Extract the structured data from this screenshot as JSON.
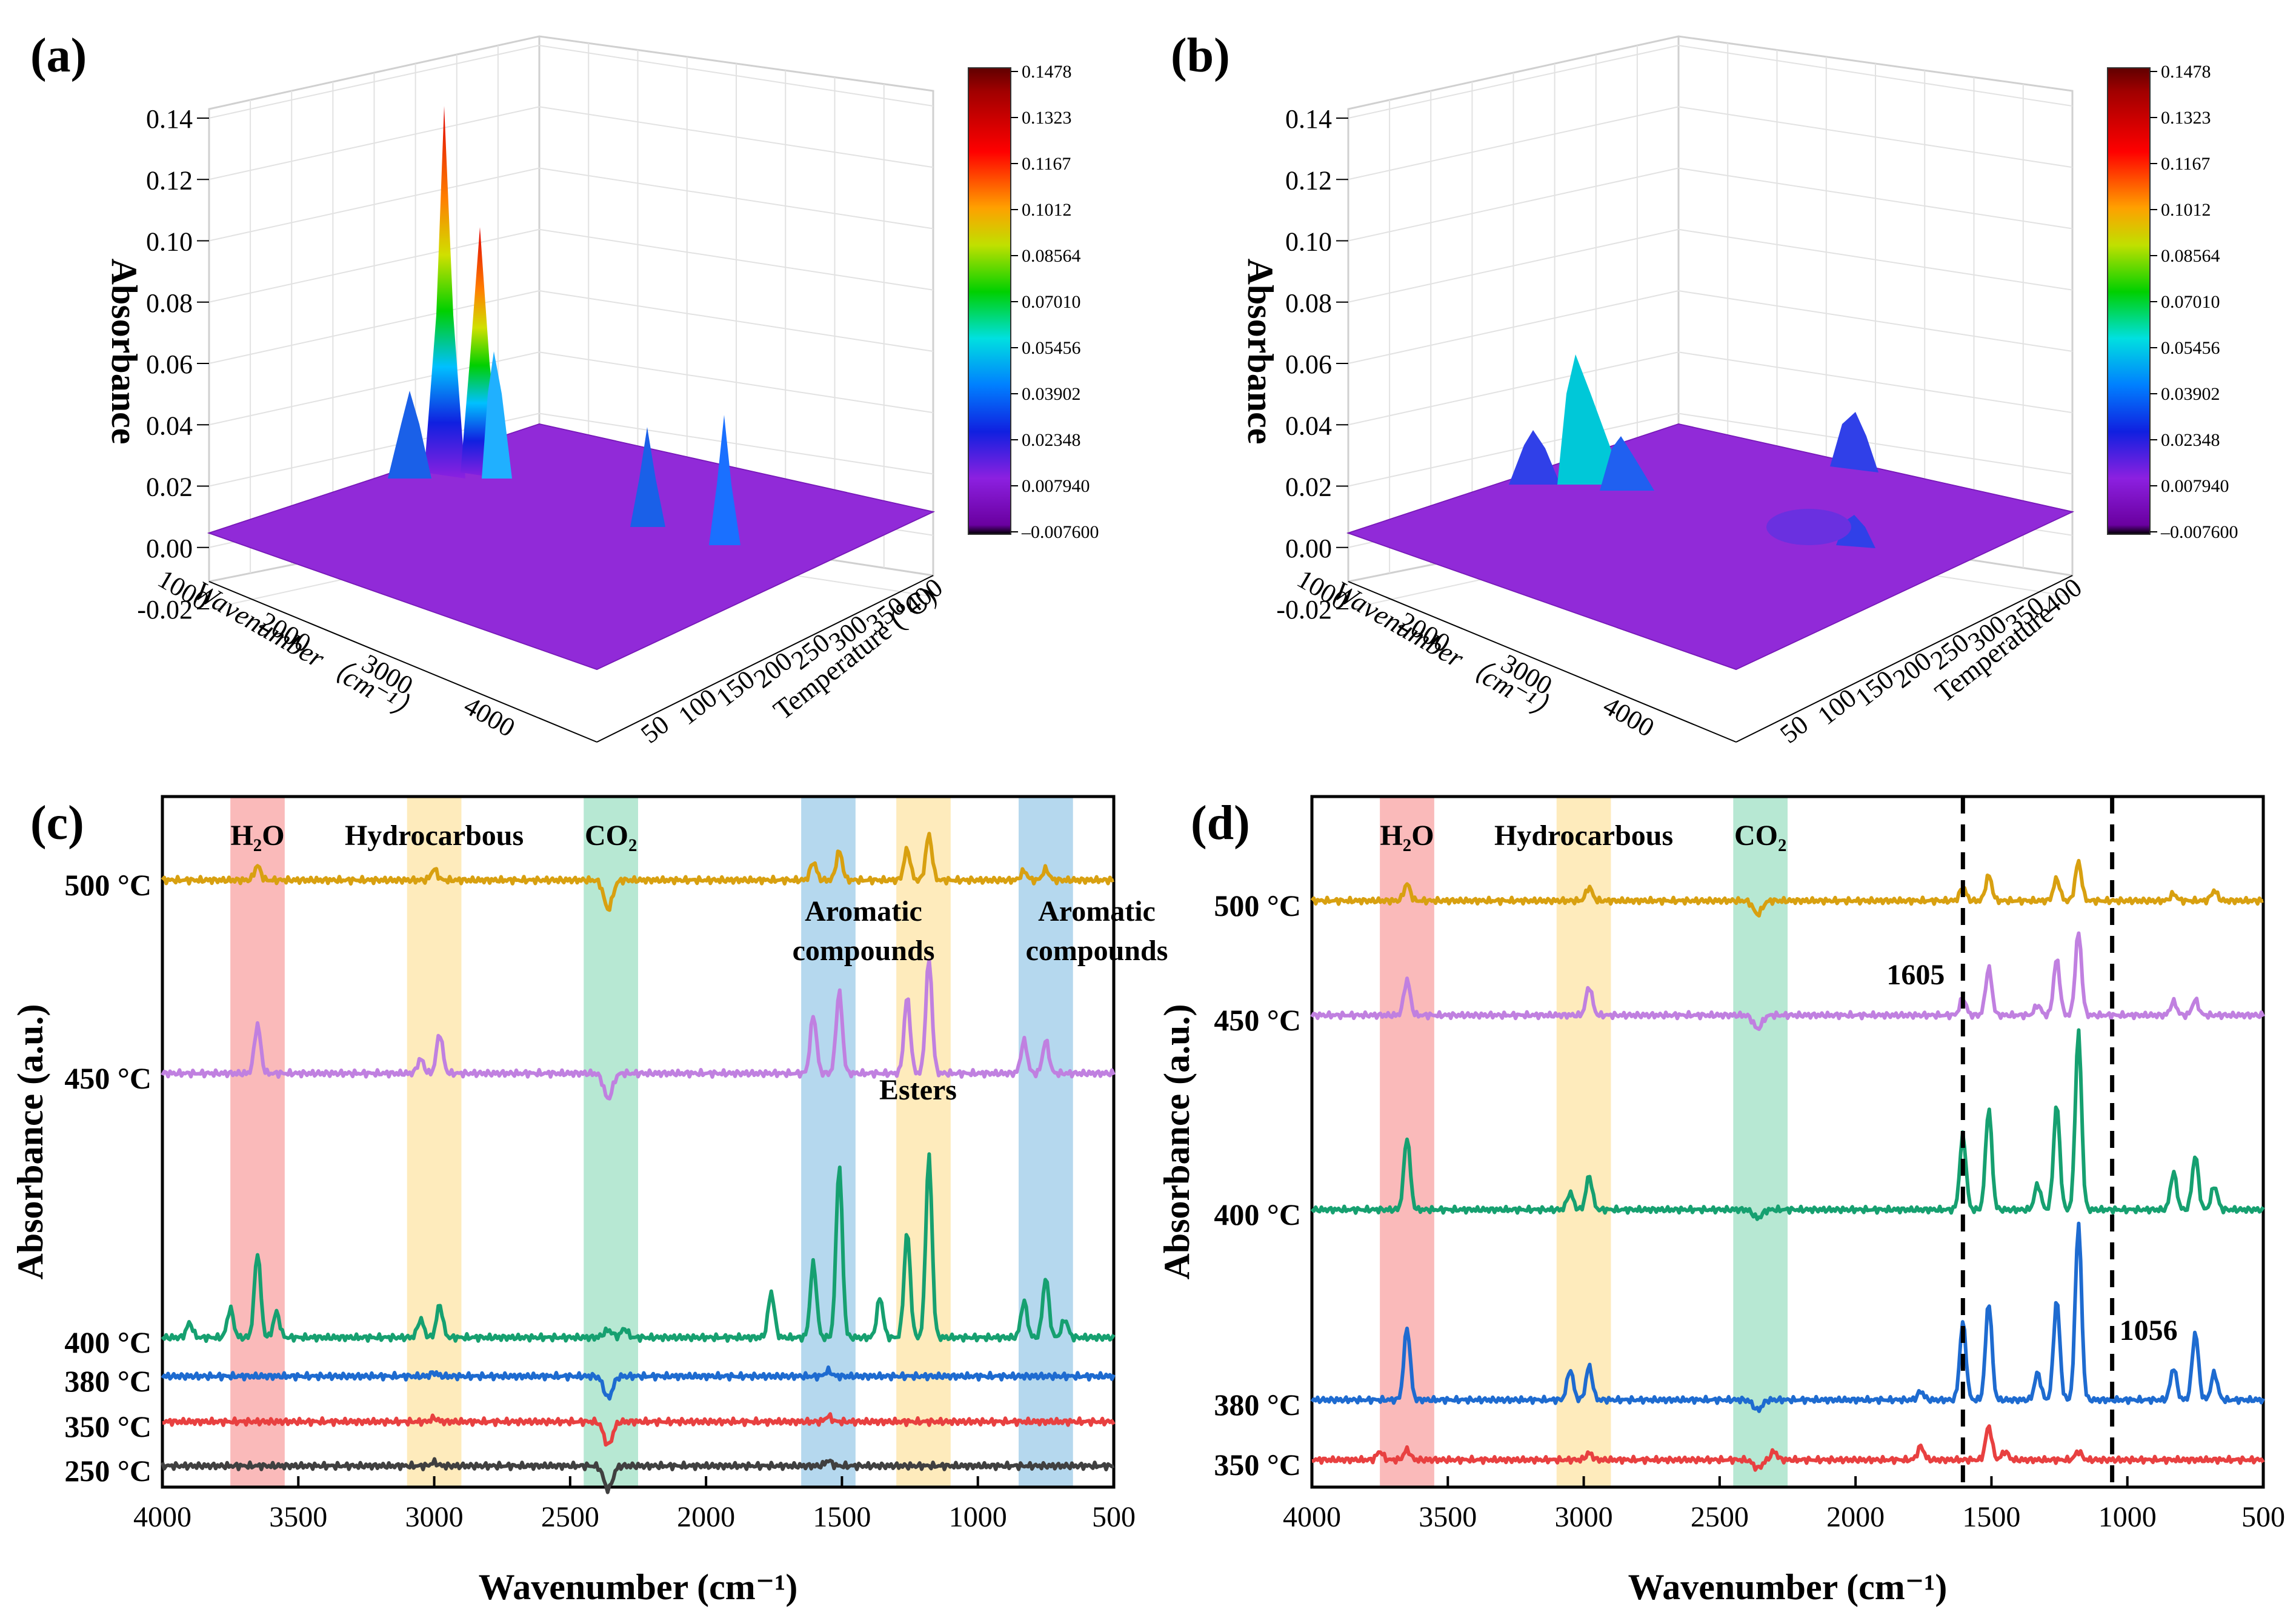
{
  "figure": {
    "panels": {
      "a": {
        "label": "(a)"
      },
      "b": {
        "label": "(b)"
      },
      "c": {
        "label": "(c)"
      },
      "d": {
        "label": "(d)"
      }
    }
  },
  "chart_data": [
    {
      "id": "a",
      "type": "surface3d",
      "title": "",
      "xlabel": "Wavenumber（cm⁻¹）",
      "ylabel": "Temperature (℃)",
      "zlabel": "Absorbance",
      "z_ticks": [
        "-0.02",
        "0.00",
        "0.02",
        "0.04",
        "0.06",
        "0.08",
        "0.10",
        "0.12",
        "0.14"
      ],
      "wavenumber_ticks": [
        "1000",
        "2000",
        "3000",
        "4000"
      ],
      "temperature_ticks": [
        "50",
        "100",
        "150",
        "200",
        "250",
        "300",
        "350",
        "400"
      ],
      "colorbar_ticks": [
        "0.1478",
        "0.1323",
        "0.1167",
        "0.1012",
        "0.08564",
        "0.07010",
        "0.05456",
        "0.03902",
        "0.02348",
        "0.007940",
        "-0.007600"
      ],
      "peaks": [
        {
          "wavenumber": 2970,
          "temperature": 400,
          "absorbance": 0.148
        },
        {
          "wavenumber": 2930,
          "temperature": 400,
          "absorbance": 0.103
        },
        {
          "wavenumber": 3050,
          "temperature": 400,
          "absorbance": 0.05
        },
        {
          "wavenumber": 3650,
          "temperature": 400,
          "absorbance": 0.045
        },
        {
          "wavenumber": 1510,
          "temperature": 400,
          "absorbance": 0.035
        },
        {
          "wavenumber": 1180,
          "temperature": 400,
          "absorbance": 0.045
        }
      ]
    },
    {
      "id": "b",
      "type": "surface3d",
      "title": "",
      "xlabel": "Wavenumber（cm⁻¹）",
      "ylabel": "Temperature",
      "zlabel": "Absorbance",
      "z_ticks": [
        "-0.02",
        "0.00",
        "0.02",
        "0.04",
        "0.06",
        "0.08",
        "0.10",
        "0.12",
        "0.14"
      ],
      "wavenumber_ticks": [
        "1000",
        "2000",
        "3000",
        "4000"
      ],
      "temperature_ticks": [
        "50",
        "100",
        "150",
        "200",
        "250",
        "300",
        "350",
        "400"
      ],
      "colorbar_ticks": [
        "0.1478",
        "0.1323",
        "0.1167",
        "0.1012",
        "0.08564",
        "0.07010",
        "0.05456",
        "0.03902",
        "0.02348",
        "0.007940",
        "-0.007600"
      ],
      "peaks": [
        {
          "wavenumber": 2970,
          "temperature": 400,
          "absorbance": 0.058
        },
        {
          "wavenumber": 3650,
          "temperature": 400,
          "absorbance": 0.022
        },
        {
          "wavenumber": 2900,
          "temperature": 400,
          "absorbance": 0.025
        },
        {
          "wavenumber": 1510,
          "temperature": 350,
          "absorbance": 0.018
        },
        {
          "wavenumber": 1180,
          "temperature": 350,
          "absorbance": 0.015
        }
      ]
    },
    {
      "id": "c",
      "type": "line",
      "title": "",
      "xlabel": "Wavenumber (cm⁻¹)",
      "ylabel": "Absorbance (a.u.)",
      "xlim": [
        4000,
        500
      ],
      "x_ticks": [
        "4000",
        "3500",
        "3000",
        "2500",
        "2000",
        "1500",
        "1000",
        "500"
      ],
      "bands": [
        {
          "label": "H₂O",
          "range": [
            3750,
            3550
          ],
          "color": "#f8a3a3"
        },
        {
          "label": "Hydrocarbous",
          "range": [
            3100,
            2900
          ],
          "color": "#fde4a6"
        },
        {
          "label": "CO₂",
          "range": [
            2450,
            2250
          ],
          "color": "#9fe0c4"
        },
        {
          "label": "",
          "range": [
            1650,
            1450
          ],
          "color": "#9ccbe8"
        },
        {
          "label": "",
          "range": [
            1300,
            1100
          ],
          "color": "#fde4a6"
        },
        {
          "label": "",
          "range": [
            850,
            650
          ],
          "color": "#9ccbe8"
        }
      ],
      "annotations": [
        {
          "text": "Aromatic",
          "x": 1550
        },
        {
          "text": "compounds",
          "x": 1550
        },
        {
          "text": "Aromatic",
          "x": 730
        },
        {
          "text": "compounds",
          "x": 730
        },
        {
          "text": "Esters",
          "x": 1220
        }
      ],
      "series": [
        {
          "name": "500 °C",
          "color": "#d8a010",
          "peaks": [
            [
              3650,
              0.8
            ],
            [
              3000,
              0.6
            ],
            [
              2360,
              -1.6
            ],
            [
              1605,
              1.0
            ],
            [
              1510,
              1.6
            ],
            [
              1260,
              1.7
            ],
            [
              1180,
              2.5
            ],
            [
              830,
              0.5
            ],
            [
              750,
              0.6
            ]
          ]
        },
        {
          "name": "450 °C",
          "color": "#c080e0",
          "peaks": [
            [
              3650,
              2.7
            ],
            [
              3050,
              0.8
            ],
            [
              2980,
              2.2
            ],
            [
              2360,
              -1.4
            ],
            [
              1605,
              3.2
            ],
            [
              1510,
              4.5
            ],
            [
              1260,
              4.2
            ],
            [
              1180,
              6.3
            ],
            [
              830,
              1.8
            ],
            [
              750,
              1.8
            ]
          ]
        },
        {
          "name": "400 °C",
          "color": "#16a070",
          "peaks": [
            [
              3900,
              0.8
            ],
            [
              3750,
              1.6
            ],
            [
              3650,
              4.7
            ],
            [
              3580,
              1.4
            ],
            [
              3050,
              1.0
            ],
            [
              2980,
              1.8
            ],
            [
              2360,
              0.4
            ],
            [
              2300,
              0.5
            ],
            [
              1760,
              2.5
            ],
            [
              1605,
              4.1
            ],
            [
              1510,
              9.5
            ],
            [
              1360,
              2.2
            ],
            [
              1260,
              5.8
            ],
            [
              1180,
              10.0
            ],
            [
              830,
              2.0
            ],
            [
              750,
              3.3
            ],
            [
              680,
              1.0
            ]
          ]
        },
        {
          "name": "380 °C",
          "color": "#1e6bd0",
          "peaks": [
            [
              3000,
              0.2
            ],
            [
              2360,
              -1.2
            ],
            [
              1550,
              0.3
            ]
          ]
        },
        {
          "name": "350 °C",
          "color": "#e84040",
          "peaks": [
            [
              3000,
              0.2
            ],
            [
              2360,
              -1.3
            ],
            [
              1550,
              0.3
            ]
          ]
        },
        {
          "name": "250 °C",
          "color": "#404040",
          "peaks": [
            [
              3000,
              0.2
            ],
            [
              2360,
              -1.3
            ],
            [
              1550,
              0.3
            ]
          ]
        }
      ]
    },
    {
      "id": "d",
      "type": "line",
      "title": "",
      "xlabel": "Wavenumber (cm⁻¹)",
      "ylabel": "Absorbance (a.u.)",
      "xlim": [
        4000,
        500
      ],
      "x_ticks": [
        "4000",
        "3500",
        "3000",
        "2500",
        "2000",
        "1500",
        "1000",
        "500"
      ],
      "bands": [
        {
          "label": "H₂O",
          "range": [
            3750,
            3550
          ],
          "color": "#f8a3a3"
        },
        {
          "label": "Hydrocarbous",
          "range": [
            3100,
            2900
          ],
          "color": "#fde4a6"
        },
        {
          "label": "CO₂",
          "range": [
            2450,
            2250
          ],
          "color": "#9fe0c4"
        }
      ],
      "reference_lines": [
        {
          "label": "1605",
          "x": 1605
        },
        {
          "label": "1056",
          "x": 1056
        }
      ],
      "series": [
        {
          "name": "500 °C",
          "color": "#d8a010",
          "peaks": [
            [
              3650,
              1.0
            ],
            [
              2980,
              0.8
            ],
            [
              2360,
              -0.8
            ],
            [
              1605,
              0.8
            ],
            [
              1510,
              1.5
            ],
            [
              1260,
              1.3
            ],
            [
              1180,
              2.3
            ],
            [
              830,
              0.4
            ],
            [
              680,
              0.6
            ]
          ]
        },
        {
          "name": "450 °C",
          "color": "#c080e0",
          "peaks": [
            [
              3650,
              2.1
            ],
            [
              2980,
              1.7
            ],
            [
              2360,
              -0.8
            ],
            [
              1605,
              1.0
            ],
            [
              1510,
              2.8
            ],
            [
              1330,
              0.6
            ],
            [
              1260,
              3.3
            ],
            [
              1180,
              4.9
            ],
            [
              830,
              0.8
            ],
            [
              750,
              0.9
            ]
          ]
        },
        {
          "name": "400 °C",
          "color": "#16a070",
          "peaks": [
            [
              3650,
              4.3
            ],
            [
              3050,
              1.0
            ],
            [
              2980,
              2.0
            ],
            [
              2360,
              -0.5
            ],
            [
              1605,
              4.4
            ],
            [
              1510,
              6.0
            ],
            [
              1330,
              1.5
            ],
            [
              1260,
              6.2
            ],
            [
              1180,
              10.5
            ],
            [
              830,
              2.2
            ],
            [
              750,
              3.2
            ],
            [
              680,
              1.4
            ]
          ]
        },
        {
          "name": "380 °C",
          "color": "#1e6bd0",
          "peaks": [
            [
              3650,
              4.3
            ],
            [
              3050,
              1.8
            ],
            [
              2980,
              2.0
            ],
            [
              2360,
              -0.6
            ],
            [
              1760,
              0.5
            ],
            [
              1605,
              4.6
            ],
            [
              1510,
              5.8
            ],
            [
              1330,
              1.6
            ],
            [
              1260,
              5.9
            ],
            [
              1180,
              10.4
            ],
            [
              830,
              1.9
            ],
            [
              750,
              4.0
            ],
            [
              680,
              1.6
            ]
          ]
        },
        {
          "name": "350 °C",
          "color": "#e84040",
          "peaks": [
            [
              3750,
              0.5
            ],
            [
              3650,
              0.6
            ],
            [
              2980,
              0.4
            ],
            [
              2360,
              -0.5
            ],
            [
              2300,
              0.5
            ],
            [
              1760,
              0.8
            ],
            [
              1510,
              2.0
            ],
            [
              1450,
              0.5
            ],
            [
              1180,
              0.5
            ]
          ]
        }
      ]
    }
  ]
}
